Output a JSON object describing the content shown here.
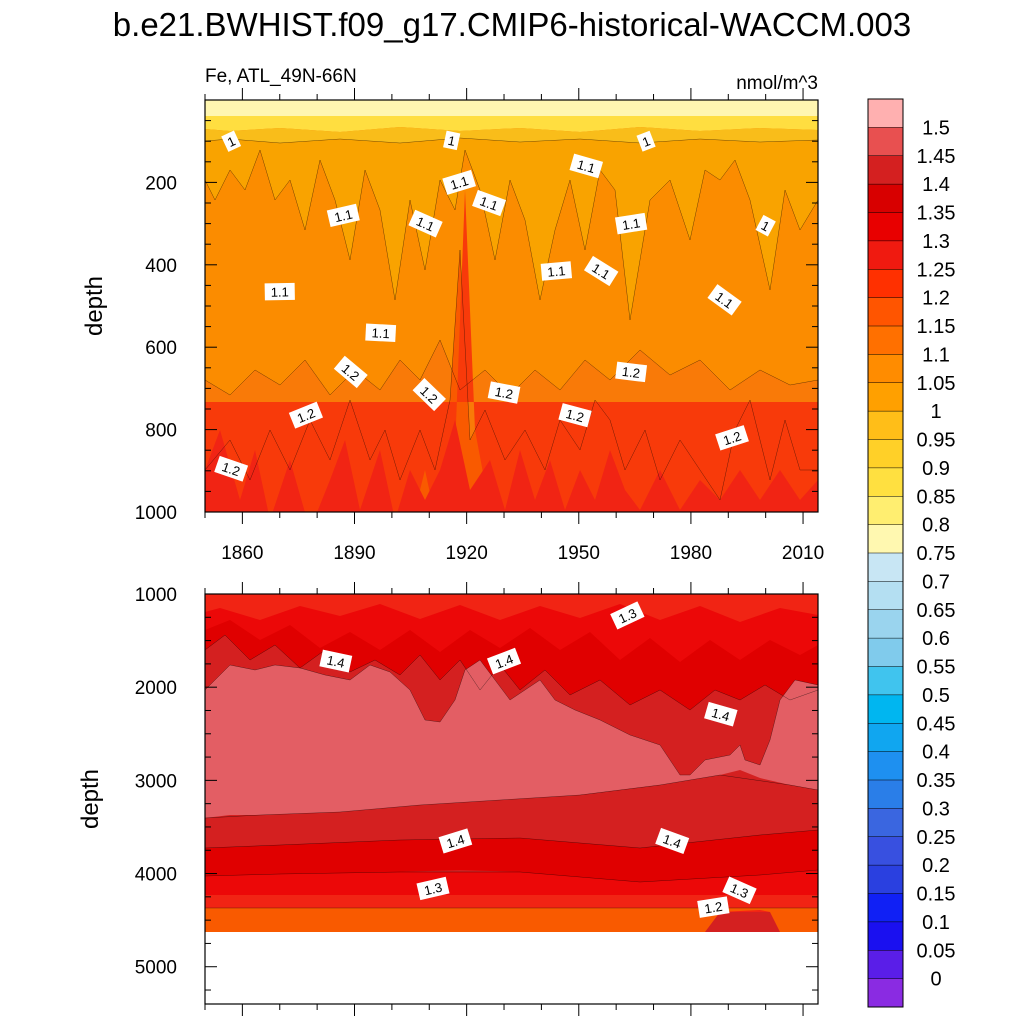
{
  "chart_data": [
    {
      "type": "contour",
      "title": "b.e21.BWHIST.f09_g17.CMIP6-historical-WACCM.003",
      "subtitle_left": "Fe, ATL_49N-66N",
      "subtitle_right": "nmol/m^3",
      "ylabel": "depth",
      "xlim": [
        1850,
        2014
      ],
      "ylim": [
        1000,
        0
      ],
      "x_ticks": [
        1860,
        1890,
        1920,
        1950,
        1980,
        2010
      ],
      "y_ticks": [
        200,
        400,
        600,
        800,
        1000
      ],
      "contour_labels": [
        {
          "text": "1",
          "x": 1857,
          "y": 100
        },
        {
          "text": "1",
          "x": 1916,
          "y": 98
        },
        {
          "text": "1",
          "x": 1968,
          "y": 100
        },
        {
          "text": "1.1",
          "x": 1952,
          "y": 160
        },
        {
          "text": "1.1",
          "x": 1918,
          "y": 200
        },
        {
          "text": "1.1",
          "x": 1926,
          "y": 250
        },
        {
          "text": "1.1",
          "x": 1887,
          "y": 280
        },
        {
          "text": "1.1",
          "x": 1909,
          "y": 300
        },
        {
          "text": "1.1",
          "x": 1964,
          "y": 300
        },
        {
          "text": "1",
          "x": 2000,
          "y": 305
        },
        {
          "text": "1.1",
          "x": 1944,
          "y": 415
        },
        {
          "text": "1.1",
          "x": 1956,
          "y": 415
        },
        {
          "text": "1.1",
          "x": 1870,
          "y": 465
        },
        {
          "text": "1.1",
          "x": 1989,
          "y": 485
        },
        {
          "text": "1.1",
          "x": 1897,
          "y": 565
        },
        {
          "text": "1.2",
          "x": 1889,
          "y": 660
        },
        {
          "text": "1.2",
          "x": 1964,
          "y": 660
        },
        {
          "text": "1.2",
          "x": 1910,
          "y": 715
        },
        {
          "text": "1.2",
          "x": 1930,
          "y": 710
        },
        {
          "text": "1.2",
          "x": 1877,
          "y": 765
        },
        {
          "text": "1.2",
          "x": 1949,
          "y": 765
        },
        {
          "text": "1.2",
          "x": 1991,
          "y": 820
        },
        {
          "text": "1.2",
          "x": 1857,
          "y": 895
        }
      ]
    },
    {
      "type": "contour",
      "ylabel": "depth",
      "xlim": [
        1850,
        2014
      ],
      "ylim": [
        5400,
        1000
      ],
      "y_ticks": [
        1000,
        2000,
        3000,
        4000,
        5000
      ],
      "data_bottom_depth": 4600,
      "contour_labels": [
        {
          "text": "1.3",
          "x": 1963,
          "y": 1230
        },
        {
          "text": "1.4",
          "x": 1885,
          "y": 1720
        },
        {
          "text": "1.4",
          "x": 1930,
          "y": 1720
        },
        {
          "text": "1.4",
          "x": 1988,
          "y": 2290
        },
        {
          "text": "1.4",
          "x": 1917,
          "y": 3650
        },
        {
          "text": "1.4",
          "x": 1975,
          "y": 3650
        },
        {
          "text": "1.3",
          "x": 1911,
          "y": 4160
        },
        {
          "text": "1.3",
          "x": 1993,
          "y": 4180
        },
        {
          "text": "1.2",
          "x": 1986,
          "y": 4360
        }
      ]
    }
  ],
  "colorbar": {
    "levels": [
      "0",
      "0.05",
      "0.1",
      "0.15",
      "0.2",
      "0.25",
      "0.3",
      "0.35",
      "0.4",
      "0.45",
      "0.5",
      "0.55",
      "0.6",
      "0.65",
      "0.7",
      "0.75",
      "0.8",
      "0.85",
      "0.9",
      "0.95",
      "1",
      "1.05",
      "1.1",
      "1.15",
      "1.2",
      "1.25",
      "1.3",
      "1.35",
      "1.4",
      "1.45",
      "1.5"
    ],
    "colors": [
      "#8a2be2",
      "#5a1ee8",
      "#1a10f0",
      "#1020f5",
      "#2a40e0",
      "#3850e0",
      "#3a66e0",
      "#2a7ee8",
      "#1e90f0",
      "#10a6f0",
      "#00b6f0",
      "#40c4ee",
      "#80cbec",
      "#9ad4ee",
      "#b4dff2",
      "#c8e6f4",
      "#fff8b0",
      "#ffee70",
      "#ffe040",
      "#ffd028",
      "#ffbe18",
      "#ffa000",
      "#ff8c00",
      "#ff7000",
      "#ff5500",
      "#ff3000",
      "#f01a10",
      "#e80000",
      "#d80000",
      "#d42020",
      "#e85050",
      "#ffb0b0"
    ]
  },
  "colors": {
    "c075": "#fff6b0",
    "c080": "#ffeb73",
    "c085": "#ffde40",
    "c090": "#fcd02a",
    "c095": "#f9bd1a",
    "c100": "#f9a300",
    "c105": "#fb8c00",
    "c110": "#f97a08",
    "c115": "#f95a00",
    "c120": "#f83a0a",
    "c125": "#f12414",
    "c130": "#ec0808",
    "c135": "#e00000",
    "c140": "#d42020",
    "c145": "#e35e64",
    "c150": "#fbacac"
  }
}
